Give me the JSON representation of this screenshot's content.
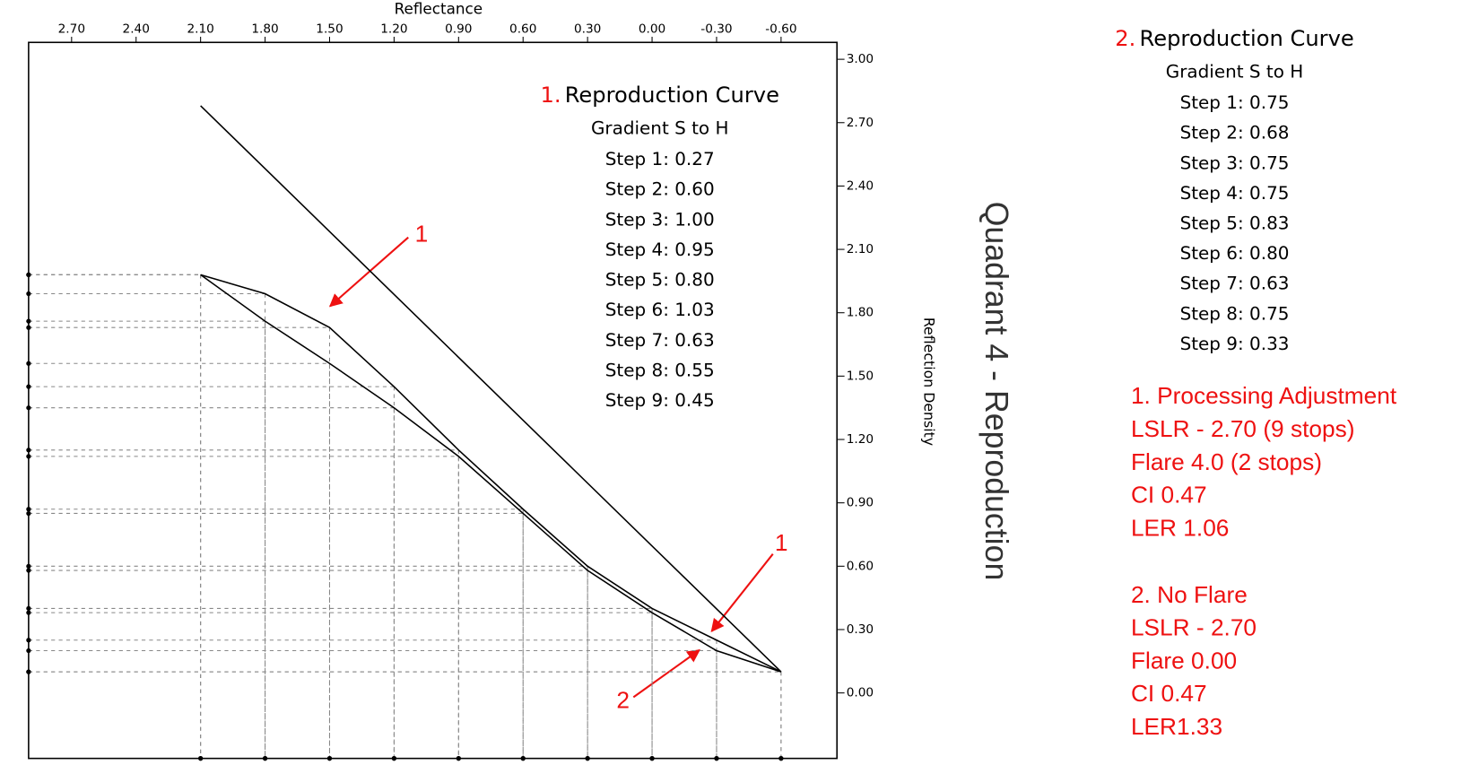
{
  "chart_data": {
    "type": "line",
    "xlabel": "Reflectance",
    "ylabel": "Reflection Density",
    "side_label": "Quadrant 4 - Reproduction",
    "xlim": [
      2.9,
      -0.86
    ],
    "ylim": [
      -0.31,
      3.08
    ],
    "xticks": [
      {
        "value": 2.7,
        "label": "2.70"
      },
      {
        "value": 2.4,
        "label": "2.40"
      },
      {
        "value": 2.1,
        "label": "2.10"
      },
      {
        "value": 1.8,
        "label": "1.80"
      },
      {
        "value": 1.5,
        "label": "1.50"
      },
      {
        "value": 1.2,
        "label": "1.20"
      },
      {
        "value": 0.9,
        "label": "0.90"
      },
      {
        "value": 0.6,
        "label": "0.60"
      },
      {
        "value": 0.3,
        "label": "0.30"
      },
      {
        "value": 0,
        "label": "0.00"
      },
      {
        "value": -0.3,
        "label": "-0.30"
      },
      {
        "value": -0.6,
        "label": "-0.60"
      }
    ],
    "yticks": [
      {
        "value": 3,
        "label": "3.00"
      },
      {
        "value": 2.7,
        "label": "2.70"
      },
      {
        "value": 2.4,
        "label": "2.40"
      },
      {
        "value": 2.1,
        "label": "2.10"
      },
      {
        "value": 1.8,
        "label": "1.80"
      },
      {
        "value": 1.5,
        "label": "1.50"
      },
      {
        "value": 1.2,
        "label": "1.20"
      },
      {
        "value": 0.9,
        "label": "0.90"
      },
      {
        "value": 0.6,
        "label": "0.60"
      },
      {
        "value": 0.3,
        "label": "0.30"
      },
      {
        "value": 0,
        "label": "0.00"
      }
    ],
    "series": [
      {
        "color": "#000000",
        "x": [
          2.1,
          -0.6
        ],
        "values": [
          2.78,
          0.1
        ]
      },
      {
        "color": "#000000",
        "dashed_guides": true,
        "x": [
          2.1,
          1.8,
          1.5,
          1.2,
          0.9,
          0.6,
          0.3,
          0,
          -0.3,
          -0.6
        ],
        "values": [
          1.98,
          1.89,
          1.73,
          1.45,
          1.15,
          0.87,
          0.6,
          0.4,
          0.25,
          0.1
        ]
      },
      {
        "color": "#000000",
        "dashed_guides": true,
        "x": [
          2.1,
          1.8,
          1.5,
          1.2,
          0.9,
          0.6,
          0.3,
          0,
          -0.3,
          -0.6
        ],
        "values": [
          1.98,
          1.76,
          1.56,
          1.35,
          1.12,
          0.85,
          0.58,
          0.38,
          0.2,
          0.1
        ]
      }
    ],
    "panels": [
      {
        "number": "1.",
        "title": "Reproduction Curve",
        "subtitle": "Gradient S to H",
        "steps": [
          "Step 1: 0.27",
          "Step 2: 0.60",
          "Step 3: 1.00",
          "Step 4: 0.95",
          "Step 5: 0.80",
          "Step 6: 1.03",
          "Step 7: 0.63",
          "Step 8: 0.55",
          "Step 9: 0.45"
        ]
      },
      {
        "number": "2.",
        "title": "Reproduction Curve",
        "subtitle": "Gradient S to H",
        "steps": [
          "Step 1: 0.75",
          "Step 2: 0.68",
          "Step 3: 0.75",
          "Step 4: 0.75",
          "Step 5: 0.83",
          "Step 6: 0.80",
          "Step 7: 0.63",
          "Step 8: 0.75",
          "Step 9: 0.33"
        ]
      }
    ],
    "notes": [
      [
        "1. Processing Adjustment",
        "LSLR - 2.70 (9 stops)",
        "Flare 4.0 (2 stops)",
        "CI 0.47",
        "LER 1.06"
      ],
      [
        "2.  No Flare",
        "LSLR - 2.70",
        "Flare 0.00",
        "CI 0.47",
        "LER1.33"
      ]
    ],
    "arrow_labels": [
      "1",
      "1",
      "2"
    ]
  }
}
